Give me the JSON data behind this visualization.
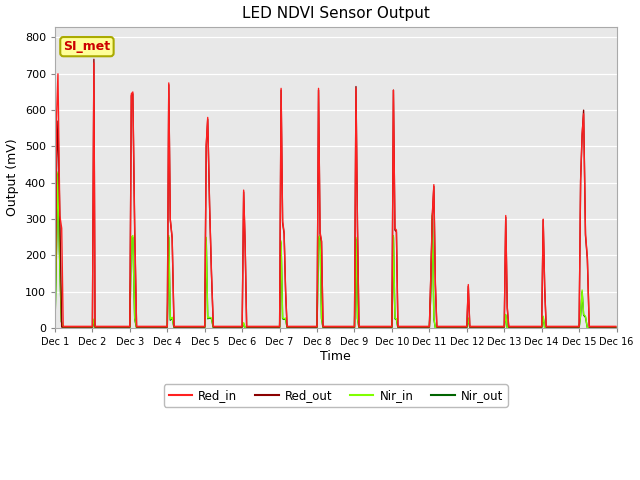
{
  "title": "LED NDVI Sensor Output",
  "xlabel": "Time",
  "ylabel": "Output (mV)",
  "ylim": [
    0,
    830
  ],
  "xlim": [
    0,
    15
  ],
  "plot_bg": "#e8e8e8",
  "fig_bg": "#ffffff",
  "annotation_text": "SI_met",
  "annotation_color": "#cc0000",
  "annotation_bg": "#ffff99",
  "annotation_border": "#aaaa00",
  "xtick_labels": [
    "Dec 1",
    "Dec 2",
    "Dec 3",
    "Dec 4",
    "Dec 5",
    "Dec 6",
    "Dec 7",
    "Dec 8",
    "Dec 9",
    "Dec 10",
    "Dec 11",
    "Dec 12",
    "Dec 13",
    "Dec 14",
    "Dec 15",
    "Dec 16"
  ],
  "xtick_positions": [
    0,
    1,
    2,
    3,
    4,
    5,
    6,
    7,
    8,
    9,
    10,
    11,
    12,
    13,
    14,
    15
  ],
  "ytick_labels": [
    "0",
    "100",
    "200",
    "300",
    "400",
    "500",
    "600",
    "700",
    "800"
  ],
  "ytick_positions": [
    0,
    100,
    200,
    300,
    400,
    500,
    600,
    700,
    800
  ],
  "legend": [
    {
      "label": "Red_in",
      "color": "#ff2020",
      "style": "-"
    },
    {
      "label": "Red_out",
      "color": "#8b0000",
      "style": "-"
    },
    {
      "label": "Nir_in",
      "color": "#80ff00",
      "style": "-"
    },
    {
      "label": "Nir_out",
      "color": "#006400",
      "style": "-"
    }
  ],
  "series_order": [
    "Nir_out",
    "Nir_in",
    "Red_out",
    "Red_in"
  ],
  "series": {
    "Red_in": {
      "color": "#ff2020",
      "lw": 1.0,
      "segments": [
        [
          0.0,
          5
        ],
        [
          0.04,
          575
        ],
        [
          0.08,
          700
        ],
        [
          0.13,
          310
        ],
        [
          0.18,
          275
        ],
        [
          0.22,
          5
        ],
        [
          0.95,
          5
        ],
        [
          1.0,
          5
        ],
        [
          1.04,
          730
        ],
        [
          1.07,
          5
        ],
        [
          1.95,
          5
        ],
        [
          2.0,
          5
        ],
        [
          2.04,
          645
        ],
        [
          2.08,
          650
        ],
        [
          2.13,
          280
        ],
        [
          2.18,
          5
        ],
        [
          2.95,
          5
        ],
        [
          3.0,
          5
        ],
        [
          3.04,
          675
        ],
        [
          3.08,
          300
        ],
        [
          3.13,
          250
        ],
        [
          3.18,
          5
        ],
        [
          3.95,
          5
        ],
        [
          4.0,
          5
        ],
        [
          4.04,
          505
        ],
        [
          4.08,
          580
        ],
        [
          4.13,
          340
        ],
        [
          4.18,
          155
        ],
        [
          4.23,
          5
        ],
        [
          4.95,
          5
        ],
        [
          5.0,
          5
        ],
        [
          5.04,
          380
        ],
        [
          5.08,
          230
        ],
        [
          5.12,
          5
        ],
        [
          5.95,
          5
        ],
        [
          6.0,
          5
        ],
        [
          6.04,
          660
        ],
        [
          6.08,
          295
        ],
        [
          6.12,
          265
        ],
        [
          6.16,
          105
        ],
        [
          6.2,
          5
        ],
        [
          6.95,
          5
        ],
        [
          7.0,
          5
        ],
        [
          7.04,
          660
        ],
        [
          7.08,
          265
        ],
        [
          7.12,
          240
        ],
        [
          7.16,
          5
        ],
        [
          7.95,
          5
        ],
        [
          8.0,
          5
        ],
        [
          8.04,
          660
        ],
        [
          8.08,
          280
        ],
        [
          8.12,
          5
        ],
        [
          8.95,
          5
        ],
        [
          9.0,
          5
        ],
        [
          9.04,
          655
        ],
        [
          9.08,
          275
        ],
        [
          9.12,
          270
        ],
        [
          9.16,
          5
        ],
        [
          9.95,
          5
        ],
        [
          10.0,
          5
        ],
        [
          10.04,
          150
        ],
        [
          10.08,
          315
        ],
        [
          10.12,
          395
        ],
        [
          10.16,
          125
        ],
        [
          10.2,
          5
        ],
        [
          10.95,
          5
        ],
        [
          11.0,
          5
        ],
        [
          11.04,
          120
        ],
        [
          11.08,
          5
        ],
        [
          11.95,
          5
        ],
        [
          12.0,
          5
        ],
        [
          12.04,
          310
        ],
        [
          12.08,
          60
        ],
        [
          12.12,
          5
        ],
        [
          12.95,
          5
        ],
        [
          13.0,
          5
        ],
        [
          13.04,
          300
        ],
        [
          13.08,
          115
        ],
        [
          13.12,
          5
        ],
        [
          13.95,
          5
        ],
        [
          14.0,
          5
        ],
        [
          14.04,
          410
        ],
        [
          14.08,
          535
        ],
        [
          14.12,
          590
        ],
        [
          14.17,
          260
        ],
        [
          14.22,
          195
        ],
        [
          14.27,
          5
        ],
        [
          15.0,
          5
        ]
      ]
    },
    "Red_out": {
      "color": "#8b0000",
      "lw": 1.0,
      "segments": [
        [
          0.0,
          3
        ],
        [
          0.04,
          430
        ],
        [
          0.08,
          570
        ],
        [
          0.13,
          310
        ],
        [
          0.18,
          3
        ],
        [
          0.95,
          3
        ],
        [
          1.0,
          3
        ],
        [
          1.04,
          740
        ],
        [
          1.07,
          3
        ],
        [
          1.95,
          3
        ],
        [
          2.0,
          3
        ],
        [
          2.04,
          640
        ],
        [
          2.08,
          645
        ],
        [
          2.13,
          260
        ],
        [
          2.18,
          3
        ],
        [
          2.95,
          3
        ],
        [
          3.0,
          3
        ],
        [
          3.04,
          670
        ],
        [
          3.08,
          298
        ],
        [
          3.13,
          248
        ],
        [
          3.18,
          3
        ],
        [
          3.95,
          3
        ],
        [
          4.0,
          3
        ],
        [
          4.04,
          500
        ],
        [
          4.08,
          575
        ],
        [
          4.13,
          335
        ],
        [
          4.18,
          150
        ],
        [
          4.23,
          3
        ],
        [
          4.95,
          3
        ],
        [
          5.0,
          3
        ],
        [
          5.04,
          375
        ],
        [
          5.08,
          228
        ],
        [
          5.12,
          3
        ],
        [
          5.95,
          3
        ],
        [
          6.0,
          3
        ],
        [
          6.04,
          655
        ],
        [
          6.08,
          290
        ],
        [
          6.12,
          260
        ],
        [
          6.16,
          100
        ],
        [
          6.2,
          3
        ],
        [
          6.95,
          3
        ],
        [
          7.0,
          3
        ],
        [
          7.04,
          655
        ],
        [
          7.08,
          260
        ],
        [
          7.12,
          238
        ],
        [
          7.16,
          3
        ],
        [
          7.95,
          3
        ],
        [
          8.0,
          3
        ],
        [
          8.04,
          665
        ],
        [
          8.08,
          278
        ],
        [
          8.12,
          3
        ],
        [
          8.95,
          3
        ],
        [
          9.0,
          3
        ],
        [
          9.04,
          655
        ],
        [
          9.08,
          270
        ],
        [
          9.12,
          265
        ],
        [
          9.16,
          3
        ],
        [
          9.95,
          3
        ],
        [
          10.0,
          3
        ],
        [
          10.04,
          145
        ],
        [
          10.08,
          310
        ],
        [
          10.12,
          390
        ],
        [
          10.16,
          120
        ],
        [
          10.2,
          3
        ],
        [
          10.95,
          3
        ],
        [
          11.0,
          3
        ],
        [
          11.04,
          115
        ],
        [
          11.08,
          3
        ],
        [
          11.95,
          3
        ],
        [
          12.0,
          3
        ],
        [
          12.04,
          305
        ],
        [
          12.08,
          55
        ],
        [
          12.12,
          3
        ],
        [
          12.95,
          3
        ],
        [
          13.0,
          3
        ],
        [
          13.04,
          298
        ],
        [
          13.08,
          110
        ],
        [
          13.12,
          3
        ],
        [
          13.95,
          3
        ],
        [
          14.0,
          3
        ],
        [
          14.04,
          405
        ],
        [
          14.08,
          530
        ],
        [
          14.12,
          600
        ],
        [
          14.17,
          255
        ],
        [
          14.22,
          190
        ],
        [
          14.27,
          3
        ],
        [
          15.0,
          3
        ]
      ]
    },
    "Nir_in": {
      "color": "#80ff00",
      "lw": 1.0,
      "segments": [
        [
          0.0,
          1
        ],
        [
          0.04,
          215
        ],
        [
          0.08,
          430
        ],
        [
          0.12,
          215
        ],
        [
          0.17,
          20
        ],
        [
          0.22,
          1
        ],
        [
          0.95,
          1
        ],
        [
          1.0,
          1
        ],
        [
          1.04,
          25
        ],
        [
          1.07,
          1
        ],
        [
          1.95,
          1
        ],
        [
          2.0,
          1
        ],
        [
          2.04,
          250
        ],
        [
          2.08,
          255
        ],
        [
          2.13,
          28
        ],
        [
          2.18,
          1
        ],
        [
          2.95,
          1
        ],
        [
          3.0,
          1
        ],
        [
          3.04,
          255
        ],
        [
          3.08,
          25
        ],
        [
          3.13,
          30
        ],
        [
          3.18,
          1
        ],
        [
          3.95,
          1
        ],
        [
          4.0,
          1
        ],
        [
          4.04,
          250
        ],
        [
          4.08,
          28
        ],
        [
          4.13,
          30
        ],
        [
          4.18,
          28
        ],
        [
          4.23,
          1
        ],
        [
          4.95,
          1
        ],
        [
          5.0,
          1
        ],
        [
          5.04,
          15
        ],
        [
          5.08,
          1
        ],
        [
          5.95,
          1
        ],
        [
          6.0,
          1
        ],
        [
          6.04,
          240
        ],
        [
          6.08,
          28
        ],
        [
          6.12,
          26
        ],
        [
          6.16,
          28
        ],
        [
          6.2,
          1
        ],
        [
          6.95,
          1
        ],
        [
          7.0,
          1
        ],
        [
          7.04,
          250
        ],
        [
          7.08,
          255
        ],
        [
          7.12,
          28
        ],
        [
          7.16,
          1
        ],
        [
          7.95,
          1
        ],
        [
          8.0,
          1
        ],
        [
          8.04,
          250
        ],
        [
          8.08,
          28
        ],
        [
          8.12,
          1
        ],
        [
          8.95,
          1
        ],
        [
          9.0,
          1
        ],
        [
          9.04,
          255
        ],
        [
          9.08,
          28
        ],
        [
          9.12,
          26
        ],
        [
          9.16,
          1
        ],
        [
          9.95,
          1
        ],
        [
          10.0,
          1
        ],
        [
          10.04,
          100
        ],
        [
          10.08,
          315
        ],
        [
          10.12,
          28
        ],
        [
          10.16,
          1
        ],
        [
          10.95,
          1
        ],
        [
          11.0,
          1
        ],
        [
          11.04,
          28
        ],
        [
          11.08,
          1
        ],
        [
          11.95,
          1
        ],
        [
          12.0,
          1
        ],
        [
          12.04,
          38
        ],
        [
          12.08,
          1
        ],
        [
          12.95,
          1
        ],
        [
          13.0,
          1
        ],
        [
          13.04,
          33
        ],
        [
          13.08,
          1
        ],
        [
          13.95,
          1
        ],
        [
          14.0,
          1
        ],
        [
          14.04,
          38
        ],
        [
          14.08,
          105
        ],
        [
          14.12,
          38
        ],
        [
          14.17,
          33
        ],
        [
          14.22,
          1
        ],
        [
          15.0,
          1
        ]
      ]
    },
    "Nir_out": {
      "color": "#006400",
      "lw": 1.0,
      "segments": [
        [
          0.0,
          1
        ],
        [
          0.04,
          210
        ],
        [
          0.08,
          425
        ],
        [
          0.12,
          210
        ],
        [
          0.17,
          18
        ],
        [
          0.22,
          1
        ],
        [
          0.95,
          1
        ],
        [
          1.0,
          1
        ],
        [
          1.04,
          20
        ],
        [
          1.07,
          1
        ],
        [
          1.95,
          1
        ],
        [
          2.0,
          1
        ],
        [
          2.04,
          245
        ],
        [
          2.08,
          250
        ],
        [
          2.13,
          25
        ],
        [
          2.18,
          1
        ],
        [
          2.95,
          1
        ],
        [
          3.0,
          1
        ],
        [
          3.04,
          250
        ],
        [
          3.08,
          22
        ],
        [
          3.13,
          28
        ],
        [
          3.18,
          1
        ],
        [
          3.95,
          1
        ],
        [
          4.0,
          1
        ],
        [
          4.04,
          245
        ],
        [
          4.08,
          26
        ],
        [
          4.13,
          28
        ],
        [
          4.18,
          26
        ],
        [
          4.23,
          1
        ],
        [
          4.95,
          1
        ],
        [
          5.0,
          1
        ],
        [
          5.04,
          12
        ],
        [
          5.08,
          1
        ],
        [
          5.95,
          1
        ],
        [
          6.0,
          1
        ],
        [
          6.04,
          235
        ],
        [
          6.08,
          26
        ],
        [
          6.12,
          24
        ],
        [
          6.16,
          26
        ],
        [
          6.2,
          1
        ],
        [
          6.95,
          1
        ],
        [
          7.0,
          1
        ],
        [
          7.04,
          245
        ],
        [
          7.08,
          250
        ],
        [
          7.12,
          26
        ],
        [
          7.16,
          1
        ],
        [
          7.95,
          1
        ],
        [
          8.0,
          1
        ],
        [
          8.04,
          245
        ],
        [
          8.08,
          26
        ],
        [
          8.12,
          1
        ],
        [
          8.95,
          1
        ],
        [
          9.0,
          1
        ],
        [
          9.04,
          250
        ],
        [
          9.08,
          26
        ],
        [
          9.12,
          24
        ],
        [
          9.16,
          1
        ],
        [
          9.95,
          1
        ],
        [
          10.0,
          1
        ],
        [
          10.04,
          98
        ],
        [
          10.08,
          310
        ],
        [
          10.12,
          26
        ],
        [
          10.16,
          1
        ],
        [
          10.95,
          1
        ],
        [
          11.0,
          1
        ],
        [
          11.04,
          26
        ],
        [
          11.08,
          1
        ],
        [
          11.95,
          1
        ],
        [
          12.0,
          1
        ],
        [
          12.04,
          36
        ],
        [
          12.08,
          1
        ],
        [
          12.95,
          1
        ],
        [
          13.0,
          1
        ],
        [
          13.04,
          30
        ],
        [
          13.08,
          1
        ],
        [
          13.95,
          1
        ],
        [
          14.0,
          1
        ],
        [
          14.04,
          36
        ],
        [
          14.08,
          100
        ],
        [
          14.12,
          36
        ],
        [
          14.17,
          30
        ],
        [
          14.22,
          1
        ],
        [
          15.0,
          1
        ]
      ]
    }
  }
}
